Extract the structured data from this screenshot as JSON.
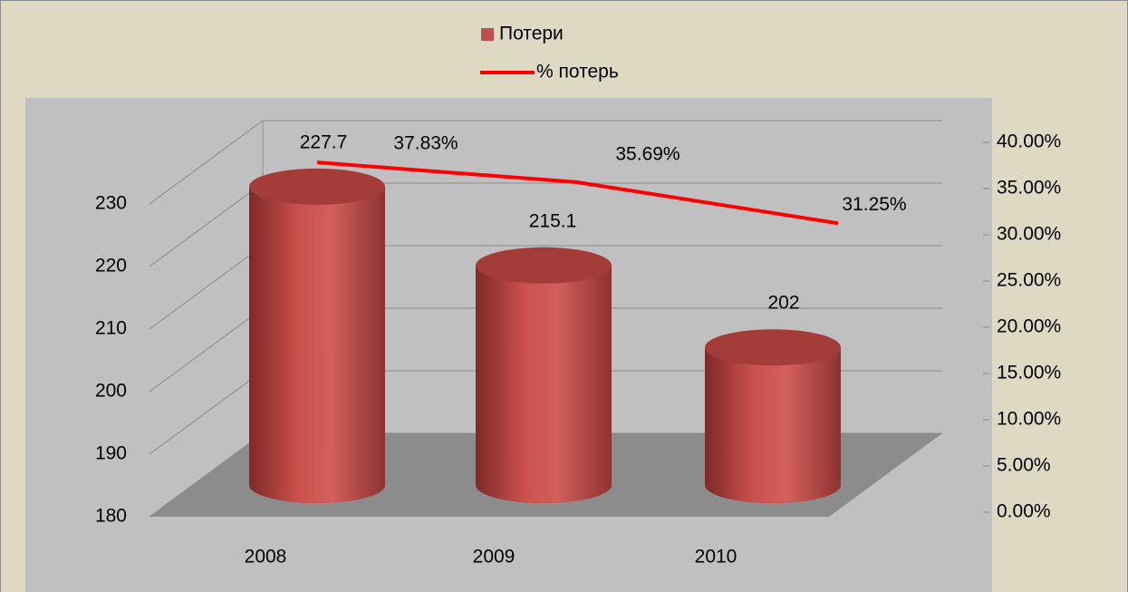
{
  "chart_data": {
    "type": "bar",
    "categories": [
      "2008",
      "2009",
      "2010"
    ],
    "series": [
      {
        "name": "Потери",
        "color": "#c0504d",
        "values": [
          227.7,
          215.1,
          202
        ]
      },
      {
        "name": "% потерь",
        "color": "#ff0000",
        "type": "line",
        "axis": "y2",
        "values": [
          37.83,
          35.69,
          31.25
        ],
        "value_labels": [
          "37.83%",
          "35.69%",
          "31.25%"
        ]
      }
    ],
    "ylim": [
      180,
      230
    ],
    "yticks": [
      180,
      190,
      200,
      210,
      220,
      230
    ],
    "y2lim": [
      0,
      40
    ],
    "y2ticks": [
      {
        "value": 0,
        "label": "0.00%"
      },
      {
        "value": 5,
        "label": "5.00%"
      },
      {
        "value": 10,
        "label": "10.00%"
      },
      {
        "value": 15,
        "label": "15.00%"
      },
      {
        "value": 20,
        "label": "20.00%"
      },
      {
        "value": 25,
        "label": "25.00%"
      },
      {
        "value": 30,
        "label": "30.00%"
      },
      {
        "value": 35,
        "label": "35.00%"
      },
      {
        "value": 40,
        "label": "40.00%"
      }
    ],
    "grid": true,
    "legend": "top"
  }
}
